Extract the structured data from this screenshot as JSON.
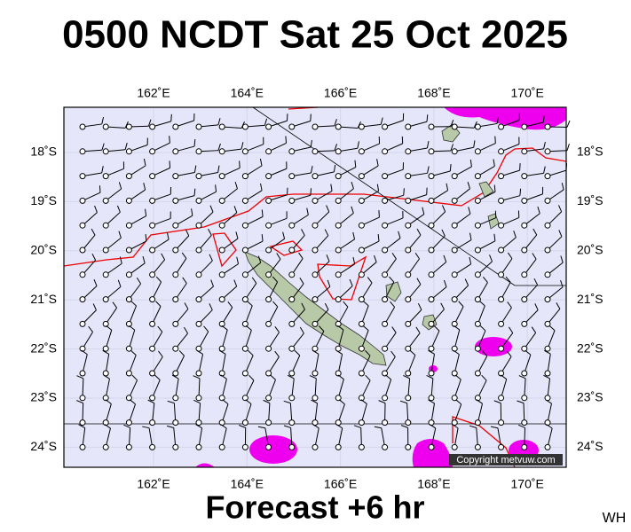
{
  "header": {
    "title": "0500 NCDT Sat 25 Oct 2025"
  },
  "map": {
    "lon_labels": [
      "162˚E",
      "164˚E",
      "166˚E",
      "168˚E",
      "170˚E"
    ],
    "lat_labels": [
      "18˚S",
      "19˚S",
      "20˚S",
      "21˚S",
      "22˚S",
      "23˚S",
      "24˚S"
    ],
    "copyright": "Copyright metvuw.com"
  },
  "footer": {
    "caption": "Forecast +6 hr",
    "initials": "WH"
  }
}
